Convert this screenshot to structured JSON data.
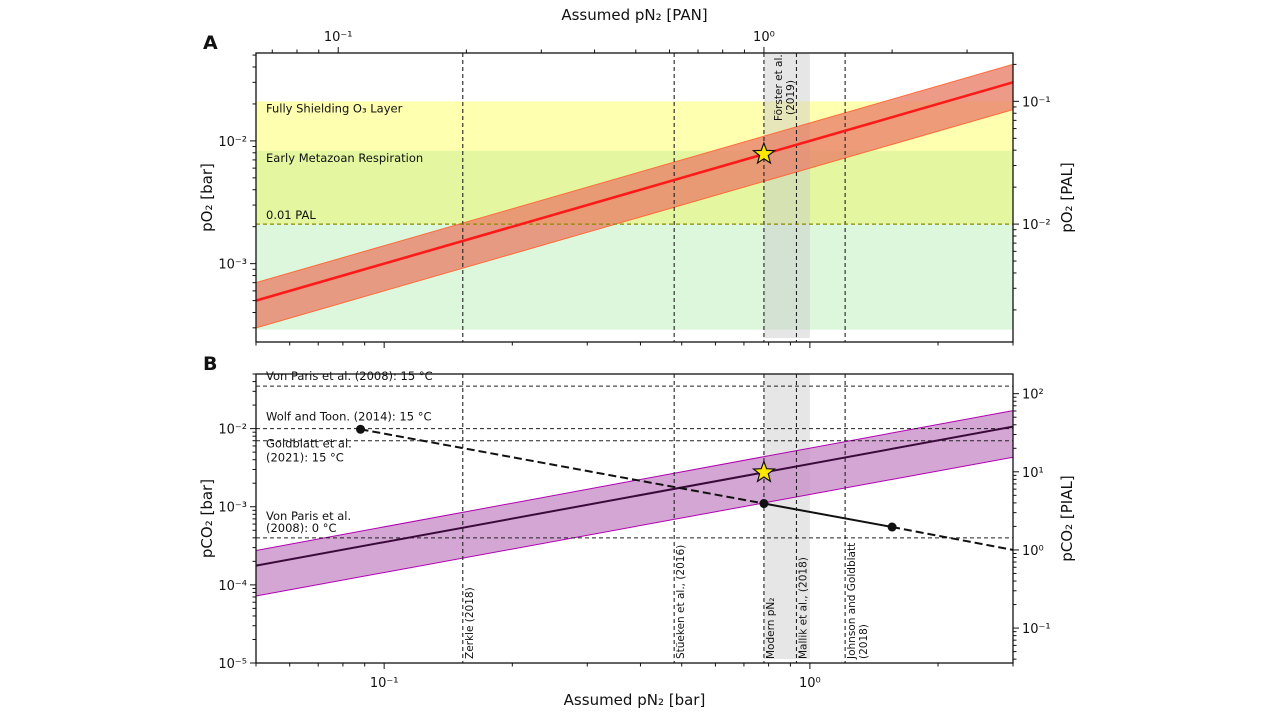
{
  "chart_data": [
    {
      "panel_label": "A",
      "type": "line",
      "x_scale": "log",
      "y_scale": "log",
      "xlim_bar": [
        0.05,
        3.0
      ],
      "ylim": [
        0.00023,
        0.052
      ],
      "xlabel_top": "Assumed pN₂ [PAN]",
      "ylabel": "pO₂ [bar]",
      "ylabel_right": "pO₂ [PAL]",
      "top_ticks": [
        {
          "label": "10⁻¹",
          "value": 0.1
        },
        {
          "label": "10⁰",
          "value": 1.0
        }
      ],
      "left_ticks": [
        {
          "label": "10⁻²",
          "value": 0.01
        },
        {
          "label": "10⁻³",
          "value": 0.001
        }
      ],
      "right_ticks": [
        {
          "label": "10⁻¹",
          "value": 0.1
        },
        {
          "label": "10⁻²",
          "value": 0.01
        }
      ],
      "bands": [
        {
          "label": "Fully Shielding O₃ Layer",
          "y_range": [
            0.0021,
            0.021
          ],
          "color": "#ffffb0"
        },
        {
          "label": "Early Metazoan Respiration",
          "y_range": [
            0.0021,
            0.0083
          ],
          "color": "#e4f7a0"
        },
        {
          "label": "",
          "y_range": [
            0.00029,
            0.0021
          ],
          "color": "#dcf7dc"
        }
      ],
      "hline": {
        "label": "0.01 PAL",
        "y": 0.0021,
        "color": "#8a8a00"
      },
      "series": [
        {
          "role": "central",
          "x": [
            0.05,
            3.0
          ],
          "y": [
            0.0005,
            0.03
          ],
          "color": "#ff1a1a"
        },
        {
          "role": "upper",
          "x": [
            0.05,
            3.0
          ],
          "y": [
            0.0007,
            0.042
          ],
          "color": "#ff6a3a"
        },
        {
          "role": "lower",
          "x": [
            0.05,
            3.0
          ],
          "y": [
            0.0003,
            0.018
          ],
          "color": "#ff6a3a"
        }
      ],
      "band_fill": "#e8826a",
      "star": {
        "x": 0.78,
        "y": 0.0078,
        "color": "#ffe800"
      },
      "gray_span": {
        "x_range": [
          0.78,
          1.0
        ],
        "label_lines": [
          "Förster et al.",
          "(2019)"
        ]
      },
      "vlines": [
        0.153,
        0.48,
        0.78,
        0.93,
        1.21
      ]
    },
    {
      "panel_label": "B",
      "type": "line",
      "x_scale": "log",
      "y_scale": "log",
      "xlim_bar": [
        0.05,
        3.0
      ],
      "ylim": [
        1e-05,
        0.05
      ],
      "xlabel": "Assumed pN₂ [bar]",
      "ylabel": "pCO₂ [bar]",
      "ylabel_right": "pCO₂ [PIAL]",
      "bottom_ticks": [
        {
          "label": "10⁻¹",
          "value": 0.1
        },
        {
          "label": "10⁰",
          "value": 1.0
        }
      ],
      "left_ticks": [
        {
          "label": "10⁻²",
          "value": 0.01
        },
        {
          "label": "10⁻³",
          "value": 0.001
        },
        {
          "label": "10⁻⁴",
          "value": 0.0001
        },
        {
          "label": "10⁻⁵",
          "value": 1e-05
        }
      ],
      "right_ticks": [
        {
          "label": "10²",
          "value": 100
        },
        {
          "label": "10¹",
          "value": 10
        },
        {
          "label": "10⁰",
          "value": 1
        },
        {
          "label": "10⁻¹",
          "value": 0.1
        }
      ],
      "hlines": [
        {
          "label_lines": [
            "Von Paris et al. (2008): 15 °C"
          ],
          "y": 0.035
        },
        {
          "label_lines": [
            "Wolf and Toon. (2014): 15 °C"
          ],
          "y": 0.01
        },
        {
          "label_lines": [
            "Goldblatt et al.",
            "(2021): 15 °C"
          ],
          "y": 0.007
        },
        {
          "label_lines": [
            "Von Paris et al.",
            "(2008): 0 °C"
          ],
          "y": 0.0004
        }
      ],
      "series": [
        {
          "role": "central",
          "x": [
            0.05,
            3.0
          ],
          "y": [
            0.000176,
            0.0106
          ],
          "color": "#3a0a3a"
        },
        {
          "role": "upper",
          "x": [
            0.05,
            3.0
          ],
          "y": [
            0.000275,
            0.017
          ],
          "color": "#b000b0"
        },
        {
          "role": "lower",
          "x": [
            0.05,
            3.0
          ],
          "y": [
            7.2e-05,
            0.0043
          ],
          "color": "#b000b0"
        }
      ],
      "band_fill": "#c990c9",
      "star": {
        "x": 0.78,
        "y": 0.00275,
        "color": "#ffe800"
      },
      "curve": {
        "points": [
          {
            "x": 0.088,
            "y": 0.0098
          },
          {
            "x": 0.78,
            "y": 0.0011
          },
          {
            "x": 1.56,
            "y": 0.00055
          }
        ],
        "end": {
          "x": 3.0,
          "y": 0.00028
        }
      },
      "gray_span": {
        "x_range": [
          0.78,
          1.0
        ]
      },
      "vlines": [
        {
          "x": 0.153,
          "label_lines": [
            "Zerkle (2018)"
          ]
        },
        {
          "x": 0.48,
          "label_lines": [
            "Stüeken et al., (2016)"
          ]
        },
        {
          "x": 0.78,
          "label_lines": [
            "Modern pN₂"
          ]
        },
        {
          "x": 0.93,
          "label_lines": [
            "Mallik et al., (2018)"
          ]
        },
        {
          "x": 1.21,
          "label_lines": [
            "Johnson and Goldblatt",
            "(2018)"
          ]
        }
      ]
    }
  ]
}
